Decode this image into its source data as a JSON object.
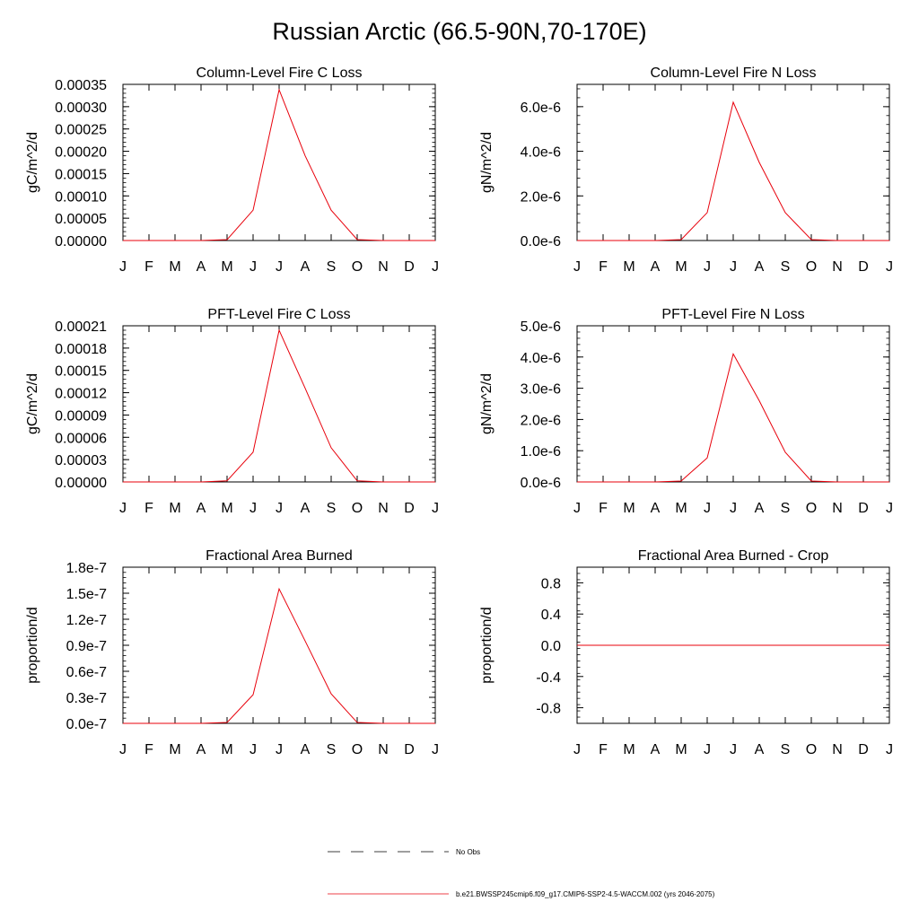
{
  "title": "Russian Arctic (66.5-90N,70-170E)",
  "chart_data": [
    {
      "type": "line",
      "title": "Column-Level Fire C Loss",
      "ylabel": "gC/m^2/d",
      "x": [
        "J",
        "F",
        "M",
        "A",
        "M",
        "J",
        "J",
        "A",
        "S",
        "O",
        "N",
        "D",
        "J"
      ],
      "ylim": [
        0,
        0.00035
      ],
      "yticks": [
        0,
        5e-05,
        0.0001,
        0.00015,
        0.0002,
        0.00025,
        0.0003,
        0.00035
      ],
      "yticklabels": [
        "0.00000",
        "0.00005",
        "0.00010",
        "0.00015",
        "0.00020",
        "0.00025",
        "0.00030",
        "0.00035"
      ],
      "series": [
        {
          "name": "b.e21.BWSSP245cmip6.f09_g17.CMIP6-SSP2-4.5-WACCM.002 (yrs 2046-2075)",
          "color": "#e8000b",
          "values": [
            0,
            0,
            0,
            0,
            2e-06,
            6.8e-05,
            0.000338,
            0.00019,
            6.8e-05,
            2e-06,
            0,
            0,
            0
          ]
        }
      ]
    },
    {
      "type": "line",
      "title": "Column-Level Fire N Loss",
      "ylabel": "gN/m^2/d",
      "x": [
        "J",
        "F",
        "M",
        "A",
        "M",
        "J",
        "J",
        "A",
        "S",
        "O",
        "N",
        "D",
        "J"
      ],
      "ylim": [
        0,
        7e-06
      ],
      "yticks": [
        0,
        2e-06,
        4e-06,
        6e-06
      ],
      "yticklabels": [
        "0.0e-6",
        "2.0e-6",
        "4.0e-6",
        "6.0e-6"
      ],
      "series": [
        {
          "name": "b.e21.BWSSP245cmip6.f09_g17.CMIP6-SSP2-4.5-WACCM.002 (yrs 2046-2075)",
          "color": "#e8000b",
          "values": [
            0,
            0,
            0,
            0,
            4e-08,
            1.25e-06,
            6.2e-06,
            3.5e-06,
            1.25e-06,
            4e-08,
            0,
            0,
            0
          ]
        }
      ]
    },
    {
      "type": "line",
      "title": "PFT-Level Fire C Loss",
      "ylabel": "gC/m^2/d",
      "x": [
        "J",
        "F",
        "M",
        "A",
        "M",
        "J",
        "J",
        "A",
        "S",
        "O",
        "N",
        "D",
        "J"
      ],
      "ylim": [
        0,
        0.00021
      ],
      "yticks": [
        0,
        3e-05,
        6e-05,
        9e-05,
        0.00012,
        0.00015,
        0.00018,
        0.00021
      ],
      "yticklabels": [
        "0.00000",
        "0.00003",
        "0.00006",
        "0.00009",
        "0.00012",
        "0.00015",
        "0.00018",
        "0.00021"
      ],
      "series": [
        {
          "name": "b.e21.BWSSP245cmip6.f09_g17.CMIP6-SSP2-4.5-WACCM.002 (yrs 2046-2075)",
          "color": "#e8000b",
          "values": [
            0,
            0,
            0,
            0,
            1.5e-06,
            4e-05,
            0.000204,
            0.000126,
            4.6e-05,
            1.5e-06,
            0,
            0,
            0
          ]
        }
      ]
    },
    {
      "type": "line",
      "title": "PFT-Level Fire N Loss",
      "ylabel": "gN/m^2/d",
      "x": [
        "J",
        "F",
        "M",
        "A",
        "M",
        "J",
        "J",
        "A",
        "S",
        "O",
        "N",
        "D",
        "J"
      ],
      "ylim": [
        0,
        5e-06
      ],
      "yticks": [
        0,
        1e-06,
        2e-06,
        3e-06,
        4e-06,
        5e-06
      ],
      "yticklabels": [
        "0.0e-6",
        "1.0e-6",
        "2.0e-6",
        "3.0e-6",
        "4.0e-6",
        "5.0e-6"
      ],
      "series": [
        {
          "name": "b.e21.BWSSP245cmip6.f09_g17.CMIP6-SSP2-4.5-WACCM.002 (yrs 2046-2075)",
          "color": "#e8000b",
          "values": [
            0,
            0,
            0,
            0,
            3e-08,
            7.7e-07,
            4.1e-06,
            2.6e-06,
            9.5e-07,
            3e-08,
            0,
            0,
            0
          ]
        }
      ]
    },
    {
      "type": "line",
      "title": "Fractional Area Burned",
      "ylabel": "proportion/d",
      "x": [
        "J",
        "F",
        "M",
        "A",
        "M",
        "J",
        "J",
        "A",
        "S",
        "O",
        "N",
        "D",
        "J"
      ],
      "ylim": [
        0,
        1.8e-07
      ],
      "yticks": [
        0,
        3e-08,
        6e-08,
        9e-08,
        1.2e-07,
        1.5e-07,
        1.8e-07
      ],
      "yticklabels": [
        "0.0e-7",
        "0.3e-7",
        "0.6e-7",
        "0.9e-7",
        "1.2e-7",
        "1.5e-7",
        "1.8e-7"
      ],
      "series": [
        {
          "name": "b.e21.BWSSP245cmip6.f09_g17.CMIP6-SSP2-4.5-WACCM.002 (yrs 2046-2075)",
          "color": "#e8000b",
          "values": [
            0,
            0,
            0,
            0,
            1e-09,
            3.3e-08,
            1.55e-07,
            9.5e-08,
            3.4e-08,
            1e-09,
            0,
            0,
            0
          ]
        }
      ]
    },
    {
      "type": "line",
      "title": "Fractional Area Burned - Crop",
      "ylabel": "proportion/d",
      "x": [
        "J",
        "F",
        "M",
        "A",
        "M",
        "J",
        "J",
        "A",
        "S",
        "O",
        "N",
        "D",
        "J"
      ],
      "ylim": [
        -1,
        1
      ],
      "yticks": [
        -0.8,
        -0.4,
        0,
        0.4,
        0.8
      ],
      "yticklabels": [
        "-0.8",
        "-0.4",
        "0.0",
        "0.4",
        "0.8"
      ],
      "series": [
        {
          "name": "b.e21.BWSSP245cmip6.f09_g17.CMIP6-SSP2-4.5-WACCM.002 (yrs 2046-2075)",
          "color": "#e8000b",
          "values": [
            0,
            0,
            0,
            0,
            0,
            0,
            0,
            0,
            0,
            0,
            0,
            0,
            0
          ]
        }
      ]
    }
  ],
  "legend": [
    {
      "label": "No Obs",
      "color": "#000000",
      "style": "dashed"
    },
    {
      "label": "b.e21.BWSSP245cmip6.f09_g17.CMIP6-SSP2-4.5-WACCM.002 (yrs 2046-2075)",
      "color": "#e8000b",
      "style": "solid"
    }
  ]
}
